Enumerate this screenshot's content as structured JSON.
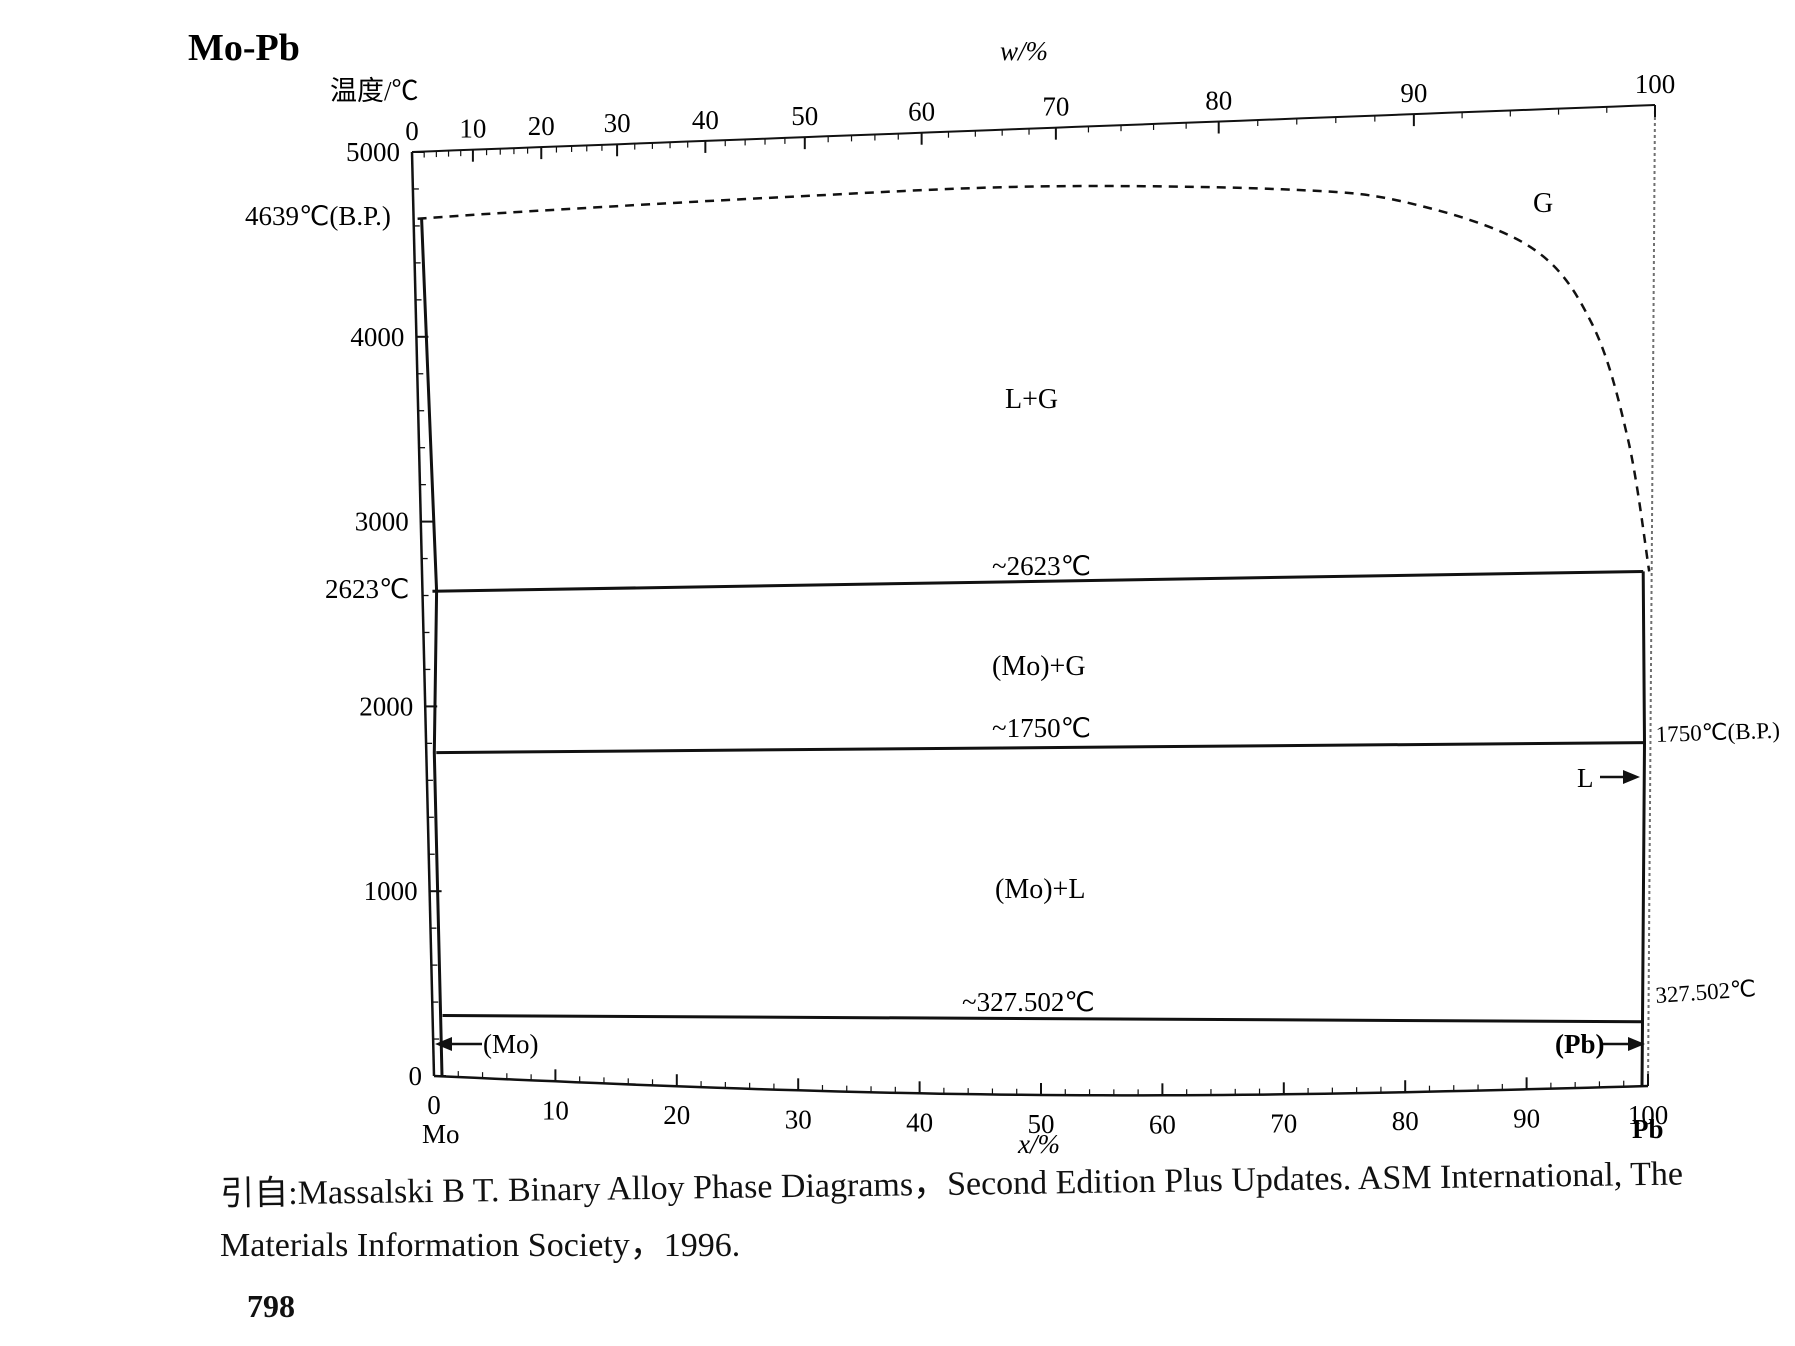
{
  "diagram": {
    "title": "Mo-Pb",
    "y_axis_label": "温度/℃",
    "top_axis_label": "w/%",
    "bottom_axis_label": "x/%",
    "left_element": "Mo",
    "right_element": "Pb",
    "y_ticks": [
      "0",
      "1000",
      "2000",
      "3000",
      "4000",
      "5000"
    ],
    "bottom_ticks": [
      "0",
      "10",
      "20",
      "30",
      "40",
      "50",
      "60",
      "70",
      "80",
      "90",
      "100"
    ],
    "top_ticks": [
      "0",
      "10",
      "20",
      "30",
      "40",
      "50",
      "60",
      "70",
      "80",
      "90",
      "100"
    ],
    "left_temperatures": [
      "4639℃(B.P.)",
      "2623℃"
    ],
    "right_temperatures": [
      "1750℃(B.P.)",
      "327.502℃"
    ],
    "isotherm_labels": [
      "~2623℃",
      "~1750℃",
      "~327.502℃"
    ],
    "regions": [
      "G",
      "L+G",
      "(Mo)+G",
      "(Mo)+L"
    ],
    "phase_labels": {
      "mo_solid": "(Mo)",
      "pb_solid": "(Pb)",
      "liquid": "L"
    }
  },
  "chart_data": {
    "type": "phase-diagram",
    "x_unit": "x/% (atomic percent Pb)",
    "y_unit": "temperature ℃",
    "xlim": [
      0,
      100
    ],
    "ylim": [
      0,
      5000
    ],
    "isotherms": [
      {
        "temperature": 2623,
        "from_x": 0,
        "to_x": 99.8
      },
      {
        "temperature": 1750,
        "from_x": 0,
        "to_x": 100
      },
      {
        "temperature": 327.502,
        "from_x": 0,
        "to_x": 100
      }
    ],
    "gas_boundary_dashed": [
      {
        "x": 0,
        "y": 4639
      },
      {
        "x": 10,
        "y": 4660
      },
      {
        "x": 30,
        "y": 4690
      },
      {
        "x": 50,
        "y": 4700
      },
      {
        "x": 70,
        "y": 4640
      },
      {
        "x": 80,
        "y": 4550
      },
      {
        "x": 90,
        "y": 4300
      },
      {
        "x": 95,
        "y": 3900
      },
      {
        "x": 98,
        "y": 3300
      },
      {
        "x": 99.8,
        "y": 2623
      }
    ],
    "mo_solidus": [
      {
        "x": 0,
        "y": 4639
      },
      {
        "x": 0,
        "y": 0
      }
    ],
    "pb_liquidus": [
      {
        "x": 99.8,
        "y": 2623
      },
      {
        "x": 100,
        "y": 1750
      },
      {
        "x": 100,
        "y": 327.502
      },
      {
        "x": 100,
        "y": 0
      }
    ],
    "boiling_points": {
      "Mo": 4639,
      "Pb": 1750
    },
    "melting_point_Pb": 327.502,
    "w_tick_positions_in_x": [
      {
        "w": 10,
        "x": 4.9
      },
      {
        "w": 20,
        "x": 10.4
      },
      {
        "w": 30,
        "x": 16.5
      },
      {
        "w": 40,
        "x": 23.6
      },
      {
        "w": 50,
        "x": 31.6
      },
      {
        "w": 60,
        "x": 41.0
      },
      {
        "w": 70,
        "x": 51.8
      },
      {
        "w": 80,
        "x": 64.9
      },
      {
        "w": 90,
        "x": 80.6
      },
      {
        "w": 100,
        "x": 100
      }
    ]
  },
  "caption": {
    "line1": "引自:Massalski B T. Binary Alloy Phase Diagrams，Second Edition Plus Updates. ASM International, The",
    "line2": "Materials Information Society，1996."
  },
  "page_number": "798"
}
